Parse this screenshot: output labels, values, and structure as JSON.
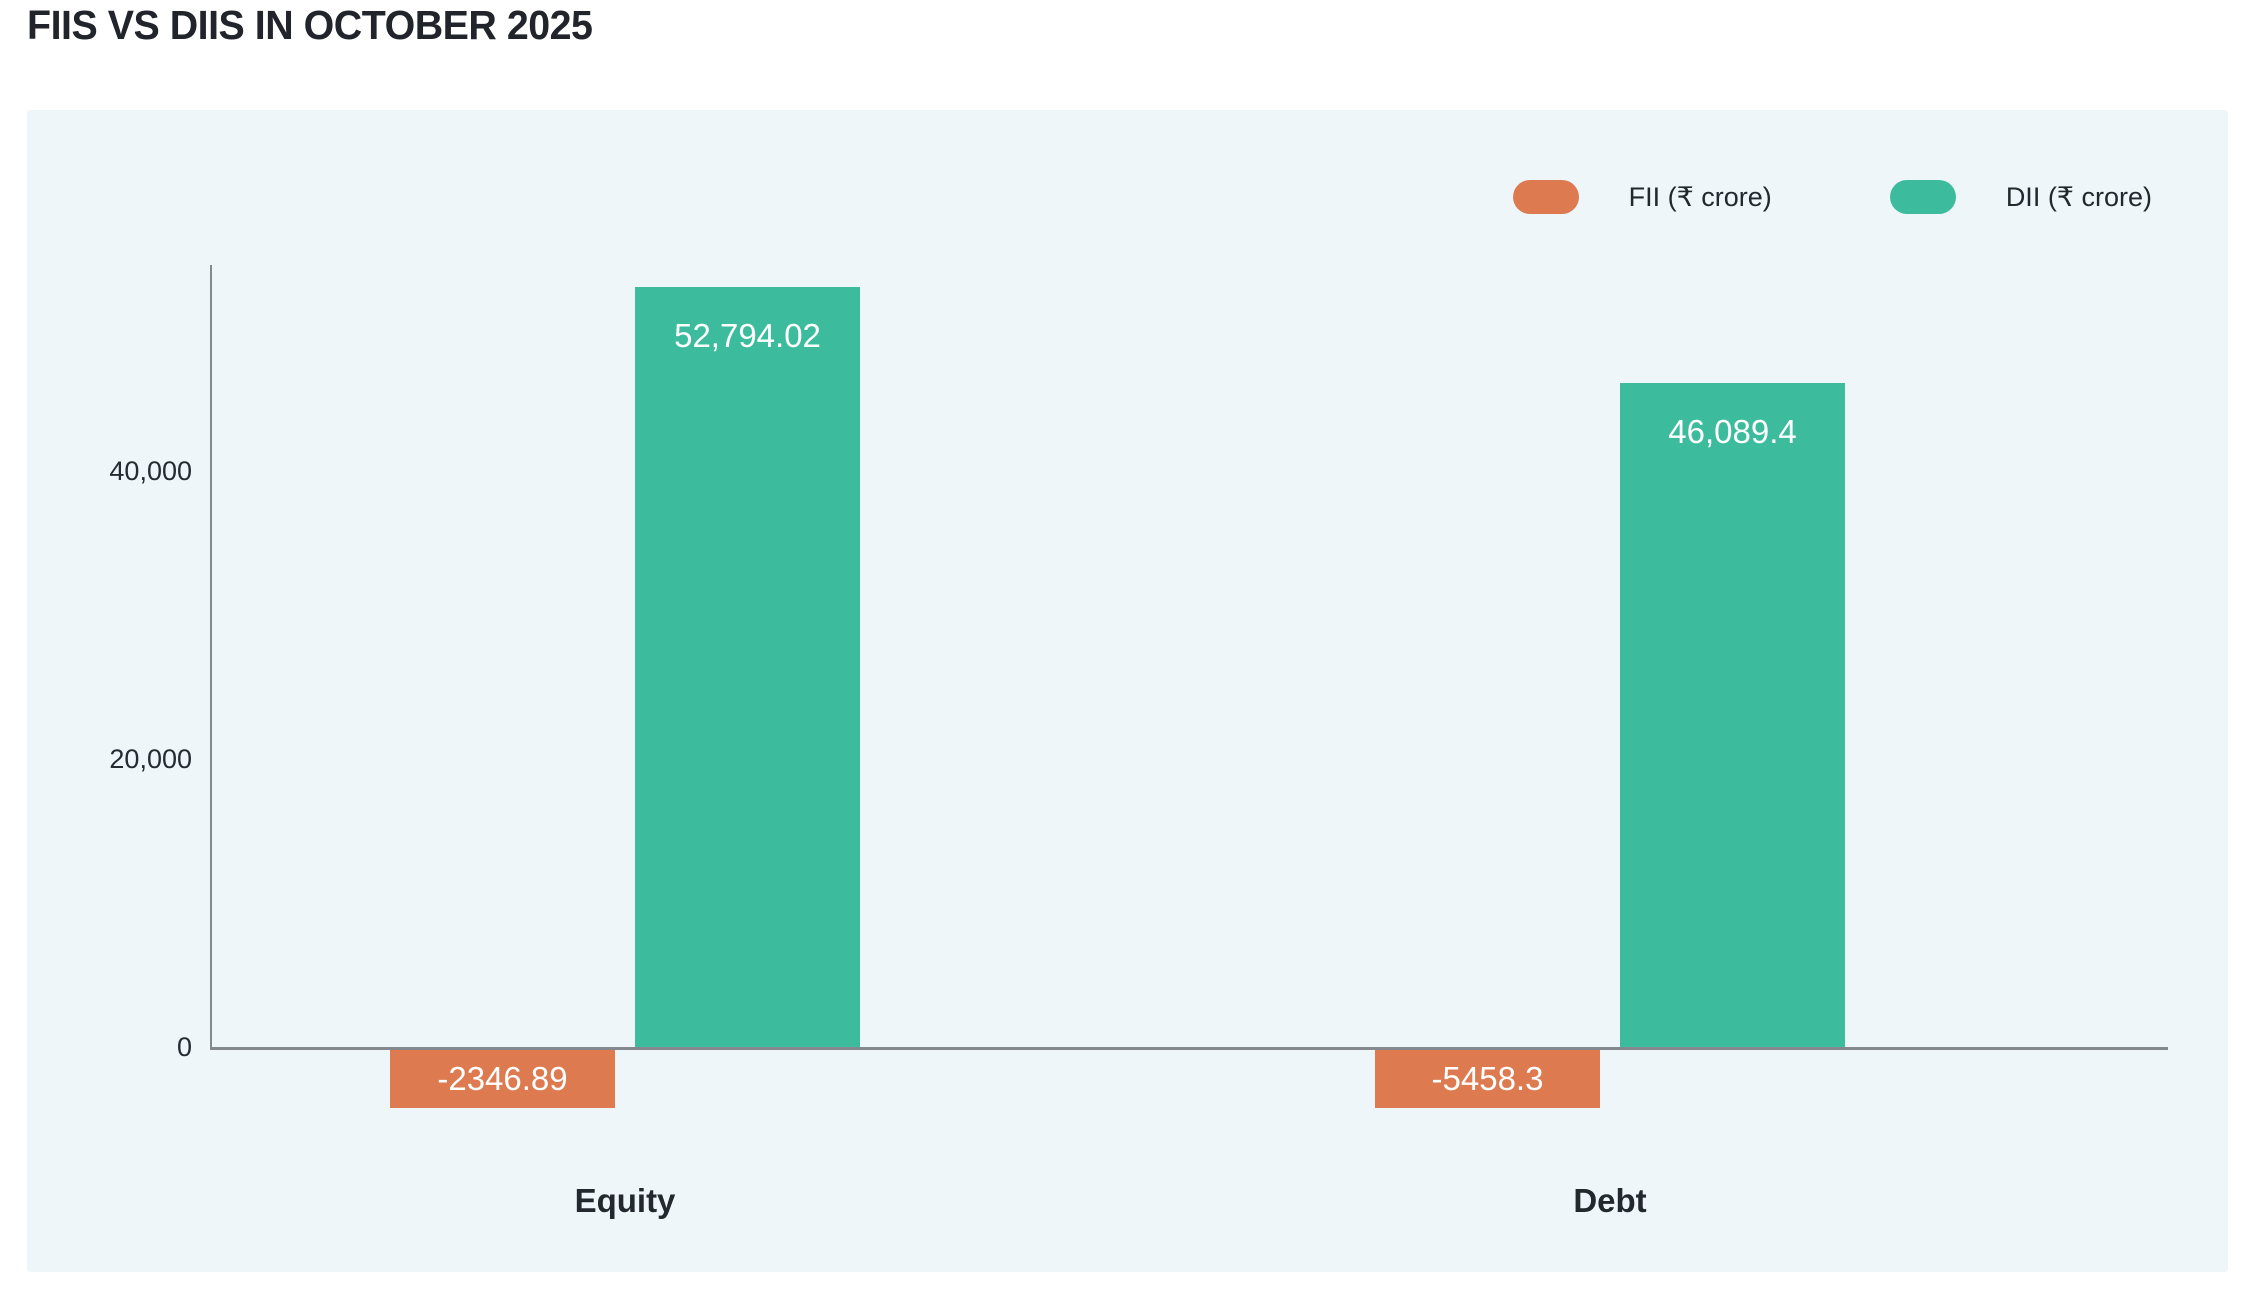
{
  "title": "FIIS VS DIIS IN OCTOBER 2025",
  "legend": [
    {
      "name": "fii",
      "label": "FII (₹ crore)",
      "color": "#dd7a50"
    },
    {
      "name": "dii",
      "label": "DII (₹ crore)",
      "color": "#3dbc9d"
    }
  ],
  "colors": {
    "fii_bar": "#dd7a50",
    "dii_bar": "#3dbc9d",
    "panel_background": "#eff6fa",
    "page_background": "#ffffff",
    "axis_line": "#85898f",
    "tick_text": "#262b33",
    "bar_label_text": "#ffffff",
    "title_text": "#21242b"
  },
  "chart_data": {
    "type": "bar",
    "title": "FIIS VS DIIS IN OCTOBER 2025",
    "categories": [
      "Equity",
      "Debt"
    ],
    "series": [
      {
        "name": "FII (₹ crore)",
        "color": "#dd7a50",
        "values": [
          -2346.89,
          -5458.3
        ],
        "labels": [
          "-2346.89",
          "-5458.3"
        ]
      },
      {
        "name": "DII (₹ crore)",
        "color": "#3dbc9d",
        "values": [
          52794.02,
          46089.4
        ],
        "labels": [
          "52,794.02",
          "46,089.4"
        ]
      }
    ],
    "xlabel": "",
    "ylabel": "",
    "ylim": [
      -6000,
      55000
    ],
    "yticks": [
      {
        "value": 0,
        "label": "0"
      },
      {
        "value": 20000,
        "label": "20,000"
      },
      {
        "value": 40000,
        "label": "40,000"
      }
    ],
    "grid": false,
    "legend_position": "top-right",
    "value_labels": "inside-bars"
  }
}
